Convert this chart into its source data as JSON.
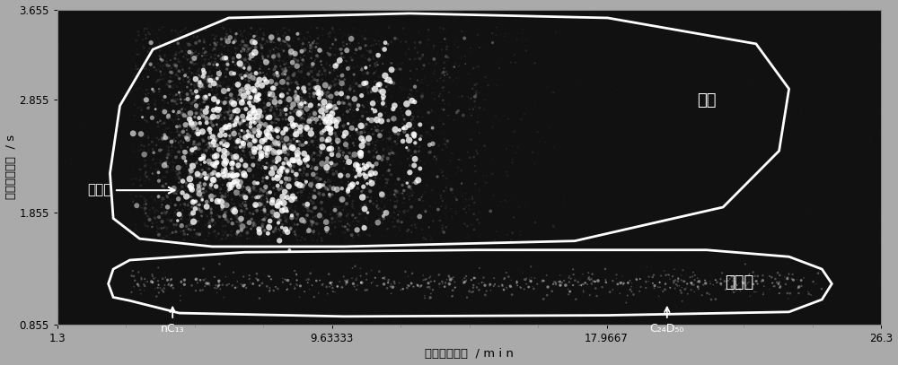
{
  "bg_color": "#0a0a0a",
  "outer_bg": "#aaaaaa",
  "plot_bg": "#111111",
  "xlim": [
    1.3,
    26.3
  ],
  "ylim": [
    0.855,
    3.655
  ],
  "xticks": [
    1.3,
    9.63333,
    17.9667,
    26.3
  ],
  "xtick_labels": [
    "1.3",
    "9.63333",
    "17.9667",
    "26.3"
  ],
  "yticks": [
    0.855,
    1.855,
    2.855,
    3.655
  ],
  "ytick_labels": [
    "0.855",
    "1.855",
    "2.855",
    "3.655"
  ],
  "xlabel": "一维保留时间  / m i n",
  "ylabel": "二维保留时间  / s",
  "label_aromatic": "芳烃",
  "label_saturate": "饱和烃",
  "label_methylnaphthalene": "甲基萂",
  "label_nC13": "nC₁₃",
  "label_C24D50": "C₂₄D₅₀",
  "text_color": "white",
  "aromatic_verts": [
    [
      3.8,
      1.62
    ],
    [
      3.0,
      1.8
    ],
    [
      2.9,
      2.2
    ],
    [
      3.2,
      2.8
    ],
    [
      4.2,
      3.3
    ],
    [
      6.5,
      3.58
    ],
    [
      12.0,
      3.62
    ],
    [
      18.0,
      3.58
    ],
    [
      22.5,
      3.35
    ],
    [
      23.5,
      2.95
    ],
    [
      23.2,
      2.4
    ],
    [
      21.5,
      1.9
    ],
    [
      17.0,
      1.6
    ],
    [
      10.0,
      1.55
    ],
    [
      6.0,
      1.55
    ],
    [
      3.8,
      1.62
    ]
  ],
  "saturate_verts": [
    [
      3.5,
      1.07
    ],
    [
      3.0,
      1.1
    ],
    [
      2.85,
      1.22
    ],
    [
      3.0,
      1.35
    ],
    [
      3.5,
      1.43
    ],
    [
      7.0,
      1.5
    ],
    [
      14.0,
      1.52
    ],
    [
      21.0,
      1.52
    ],
    [
      23.5,
      1.46
    ],
    [
      24.5,
      1.35
    ],
    [
      24.8,
      1.22
    ],
    [
      24.5,
      1.08
    ],
    [
      23.5,
      0.97
    ],
    [
      18.0,
      0.94
    ],
    [
      10.0,
      0.93
    ],
    [
      5.0,
      0.96
    ],
    [
      3.5,
      1.07
    ]
  ]
}
